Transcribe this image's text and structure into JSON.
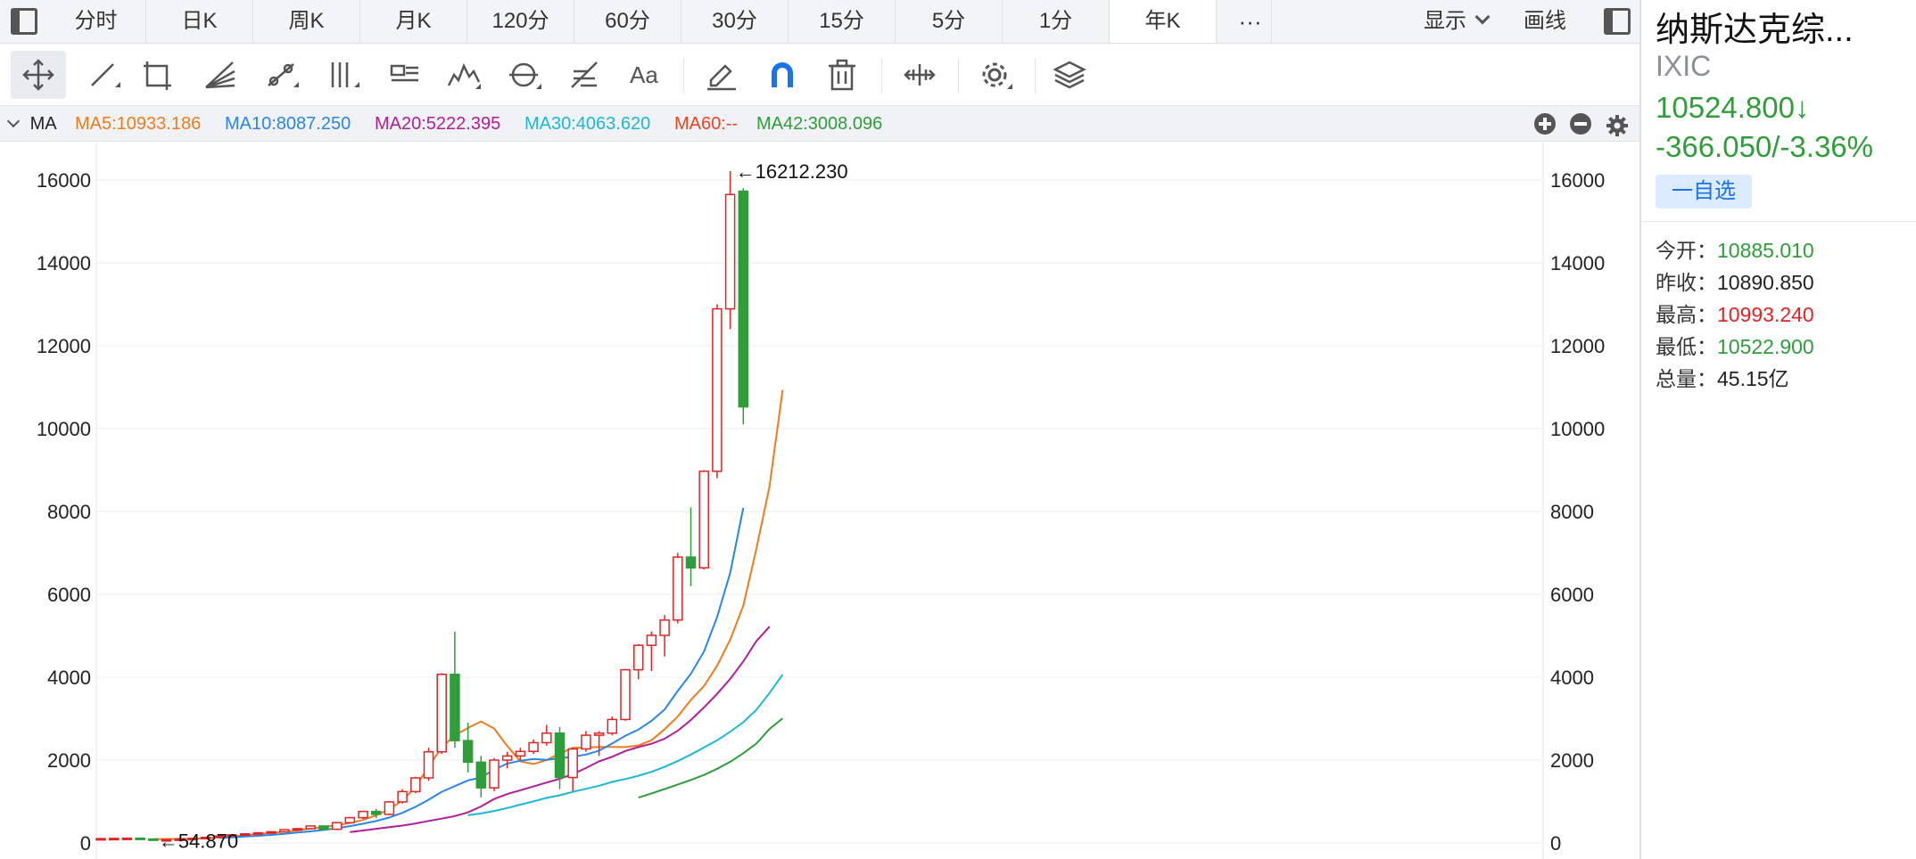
{
  "tabs": [
    {
      "label": "分时",
      "active": false
    },
    {
      "label": "日K",
      "active": false
    },
    {
      "label": "周K",
      "active": false
    },
    {
      "label": "月K",
      "active": false
    },
    {
      "label": "120分",
      "active": false
    },
    {
      "label": "60分",
      "active": false
    },
    {
      "label": "30分",
      "active": false
    },
    {
      "label": "15分",
      "active": false
    },
    {
      "label": "5分",
      "active": false
    },
    {
      "label": "1分",
      "active": false
    },
    {
      "label": "年K",
      "active": true
    }
  ],
  "header": {
    "more": "···",
    "display": "显示",
    "draw": "画线"
  },
  "toolbar": {
    "tools": [
      "move-tool-icon",
      "trend-line-icon",
      "rectangle-icon",
      "fan-icon",
      "segment-icon",
      "vertical-lines-icon",
      "text-note-icon",
      "wave-icon",
      "cycle-icon",
      "fibonacci-icon",
      "font-icon",
      "pencil-icon",
      "magnet-icon",
      "trash-icon",
      "measure-icon",
      "settings-icon",
      "layers-icon"
    ],
    "font_label": "Aa"
  },
  "ma_bar": {
    "title": "MA",
    "items": [
      {
        "label": "MA5:10933.186",
        "color": "#f07b1d"
      },
      {
        "label": "MA10:8087.250",
        "color": "#2a85e6"
      },
      {
        "label": "MA20:5222.395",
        "color": "#b01e9a"
      },
      {
        "label": "MA30:4063.620",
        "color": "#1bb8d4"
      },
      {
        "label": "MA60:--",
        "color": "#f0421e"
      },
      {
        "label": "MA42:3008.096",
        "color": "#2e9d3a"
      }
    ]
  },
  "chart_data": {
    "type": "candlestick",
    "ylim": [
      0,
      16212.23
    ],
    "yticks": [
      0,
      2000,
      4000,
      6000,
      8000,
      10000,
      12000,
      14000,
      16000
    ],
    "candles": [
      {
        "o": 100,
        "h": 120,
        "l": 95,
        "c": 105
      },
      {
        "o": 105,
        "h": 120,
        "l": 100,
        "c": 110
      },
      {
        "o": 110,
        "h": 125,
        "l": 100,
        "c": 115
      },
      {
        "o": 115,
        "h": 130,
        "l": 95,
        "c": 95
      },
      {
        "o": 95,
        "h": 100,
        "l": 55,
        "c": 75
      },
      {
        "o": 75,
        "h": 100,
        "l": 65,
        "c": 80
      },
      {
        "o": 80,
        "h": 100,
        "l": 70,
        "c": 95
      },
      {
        "o": 95,
        "h": 115,
        "l": 85,
        "c": 110
      },
      {
        "o": 110,
        "h": 140,
        "l": 105,
        "c": 135
      },
      {
        "o": 135,
        "h": 175,
        "l": 130,
        "c": 165
      },
      {
        "o": 165,
        "h": 205,
        "l": 155,
        "c": 195
      },
      {
        "o": 195,
        "h": 230,
        "l": 185,
        "c": 220
      },
      {
        "o": 220,
        "h": 260,
        "l": 200,
        "c": 245
      },
      {
        "o": 245,
        "h": 285,
        "l": 230,
        "c": 270
      },
      {
        "o": 270,
        "h": 330,
        "l": 260,
        "c": 320
      },
      {
        "o": 320,
        "h": 360,
        "l": 300,
        "c": 345
      },
      {
        "o": 345,
        "h": 420,
        "l": 330,
        "c": 410
      },
      {
        "o": 410,
        "h": 410,
        "l": 300,
        "c": 330
      },
      {
        "o": 330,
        "h": 500,
        "l": 320,
        "c": 490
      },
      {
        "o": 490,
        "h": 630,
        "l": 480,
        "c": 610
      },
      {
        "o": 610,
        "h": 780,
        "l": 580,
        "c": 760
      },
      {
        "o": 760,
        "h": 820,
        "l": 600,
        "c": 690
      },
      {
        "o": 690,
        "h": 1010,
        "l": 670,
        "c": 990
      },
      {
        "o": 990,
        "h": 1300,
        "l": 950,
        "c": 1240
      },
      {
        "o": 1240,
        "h": 1600,
        "l": 1200,
        "c": 1570
      },
      {
        "o": 1570,
        "h": 2300,
        "l": 1500,
        "c": 2200
      },
      {
        "o": 2200,
        "h": 4100,
        "l": 2150,
        "c": 4070
      },
      {
        "o": 4070,
        "h": 5100,
        "l": 2300,
        "c": 2470
      },
      {
        "o": 2470,
        "h": 2900,
        "l": 1700,
        "c": 1950
      },
      {
        "o": 1950,
        "h": 2100,
        "l": 1100,
        "c": 1330
      },
      {
        "o": 1330,
        "h": 2050,
        "l": 1250,
        "c": 2000
      },
      {
        "o": 2000,
        "h": 2200,
        "l": 1800,
        "c": 2100
      },
      {
        "o": 2100,
        "h": 2300,
        "l": 2000,
        "c": 2210
      },
      {
        "o": 2210,
        "h": 2500,
        "l": 2150,
        "c": 2420
      },
      {
        "o": 2420,
        "h": 2850,
        "l": 2350,
        "c": 2650
      },
      {
        "o": 2650,
        "h": 2800,
        "l": 1300,
        "c": 1580
      },
      {
        "o": 1580,
        "h": 2300,
        "l": 1250,
        "c": 2270
      },
      {
        "o": 2270,
        "h": 2700,
        "l": 2200,
        "c": 2600
      },
      {
        "o": 2600,
        "h": 2700,
        "l": 2100,
        "c": 2650
      },
      {
        "o": 2650,
        "h": 3050,
        "l": 2600,
        "c": 2980
      },
      {
        "o": 2980,
        "h": 4200,
        "l": 2950,
        "c": 4180
      },
      {
        "o": 4180,
        "h": 4800,
        "l": 3950,
        "c": 4770
      },
      {
        "o": 4770,
        "h": 5100,
        "l": 4150,
        "c": 5010
      },
      {
        "o": 5010,
        "h": 5500,
        "l": 4500,
        "c": 5380
      },
      {
        "o": 5380,
        "h": 7000,
        "l": 5300,
        "c": 6900
      },
      {
        "o": 6900,
        "h": 8100,
        "l": 6200,
        "c": 6640
      },
      {
        "o": 6640,
        "h": 9000,
        "l": 6600,
        "c": 8970
      },
      {
        "o": 8970,
        "h": 13000,
        "l": 8800,
        "c": 12890
      },
      {
        "o": 12890,
        "h": 16212.23,
        "l": 12400,
        "c": 15650
      },
      {
        "o": 15730,
        "h": 15800,
        "l": 10100,
        "c": 10524.8
      }
    ],
    "ma_series": [
      {
        "label": "MA5",
        "color": "#f07b1d",
        "start": 4,
        "values": [
          95,
          95,
          100,
          103,
          115,
          137,
          160,
          186,
          212,
          239,
          271,
          302,
          349,
          386,
          427,
          479,
          555,
          669,
          810,
          1026,
          1347,
          1846,
          2305,
          2596,
          2774,
          2934,
          2762,
          2340,
          1968,
          1906,
          2003,
          2159,
          2294,
          2303,
          2317,
          2318,
          2315,
          2353,
          2480,
          2745,
          3051,
          3451,
          3786,
          4278,
          4903,
          5728,
          7103,
          8606,
          10933
        ]
      },
      {
        "label": "MA10",
        "color": "#2a85e6",
        "start": 9,
        "values": [
          121,
          136,
          155,
          172,
          194,
          221,
          252,
          280,
          314,
          354,
          406,
          465,
          530,
          616,
          726,
          871,
          1043,
          1234,
          1372,
          1510,
          1581,
          1771,
          1917,
          1984,
          2029,
          2007,
          2046,
          2080,
          2134,
          2227,
          2400,
          2587,
          2735,
          2947,
          3222,
          3668,
          4082,
          4620,
          5450,
          6519,
          8087
        ]
      },
      {
        "label": "MA20",
        "color": "#b01e9a",
        "start": 19,
        "values": [
          262,
          301,
          342,
          380,
          420,
          472,
          531,
          587,
          650,
          737,
          881,
          1061,
          1181,
          1273,
          1364,
          1458,
          1548,
          1663,
          1809,
          1969,
          2079,
          2220,
          2314,
          2394,
          2517,
          2708,
          2968,
          3271,
          3597,
          3960,
          4380,
          4870,
          5222
        ]
      },
      {
        "label": "MA30",
        "color": "#1bb8d4",
        "start": 28,
        "values": [
          669,
          711,
          773,
          842,
          925,
          1005,
          1088,
          1151,
          1232,
          1307,
          1380,
          1474,
          1542,
          1622,
          1717,
          1836,
          1976,
          2133,
          2304,
          2478,
          2684,
          2914,
          3213,
          3620,
          4063
        ]
      },
      {
        "label": "MA42",
        "color": "#2e9d3a",
        "start": 41,
        "values": [
          1095,
          1195,
          1300,
          1410,
          1520,
          1640,
          1790,
          1960,
          2165,
          2400,
          2750,
          3008
        ]
      }
    ],
    "annotations": [
      {
        "label": "←16212.230",
        "index": 48,
        "value": 16212.23
      },
      {
        "label": "←54.870",
        "index": 4,
        "value": 54.87
      }
    ]
  },
  "quote": {
    "name": "纳斯达克综...",
    "code": "IXIC",
    "price": "10524.800↓",
    "change": "-366.050/-3.36%",
    "watch_button": "一自选",
    "rows": [
      {
        "label": "今开：",
        "value": "10885.010",
        "color": "#2e9d3a"
      },
      {
        "label": "昨收：",
        "value": "10890.850",
        "color": "#222222"
      },
      {
        "label": "最高：",
        "value": "10993.240",
        "color": "#e02424"
      },
      {
        "label": "最低：",
        "value": "10522.900",
        "color": "#2e9d3a"
      },
      {
        "label": "总量：",
        "value": "45.15亿",
        "color": "#222222"
      }
    ]
  }
}
